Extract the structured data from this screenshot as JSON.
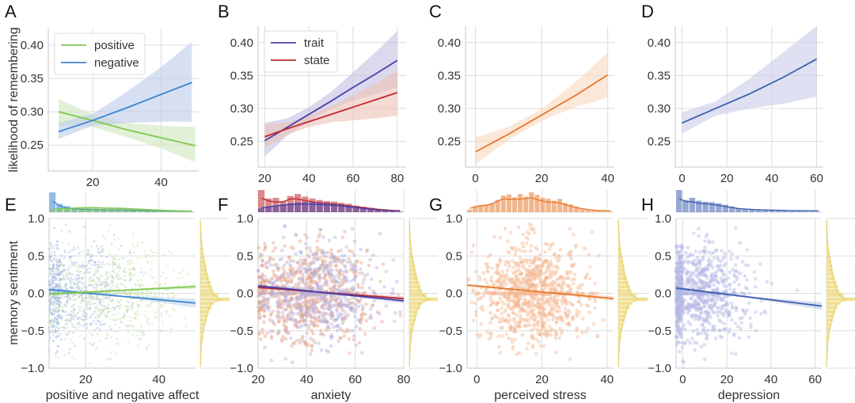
{
  "figure": {
    "top_ylabel": "likelihood of remembering",
    "bottom_ylabel": "memory sentiment",
    "marginal_color": "#e8d46a"
  },
  "chart_data": [
    {
      "panel": "A",
      "type": "line",
      "xlim": [
        7,
        51
      ],
      "ylim": [
        0.211,
        0.425
      ],
      "xticks": [
        20,
        40
      ],
      "yticks": [
        0.25,
        0.3,
        0.35,
        0.4
      ],
      "ytick_labels": [
        "0.25",
        "0.30",
        "0.35",
        "0.40"
      ],
      "xlabel": "",
      "ylabel": "likelihood of remembering",
      "grid": true,
      "legend": "top-left",
      "series": [
        {
          "name": "positive",
          "color": "#7ec850",
          "band": "#cfe6bd",
          "x": [
            10,
            20,
            30,
            40,
            50
          ],
          "y": [
            0.3,
            0.287,
            0.273,
            0.261,
            0.249
          ],
          "lo": [
            0.28,
            0.277,
            0.262,
            0.245,
            0.224
          ],
          "hi": [
            0.319,
            0.296,
            0.283,
            0.279,
            0.277
          ]
        },
        {
          "name": "negative",
          "color": "#3c86d0",
          "band": "#bccbeb",
          "x": [
            10,
            20,
            30,
            40,
            49
          ],
          "y": [
            0.27,
            0.287,
            0.306,
            0.326,
            0.344
          ],
          "lo": [
            0.259,
            0.279,
            0.283,
            0.285,
            0.285
          ],
          "hi": [
            0.283,
            0.297,
            0.33,
            0.367,
            0.405
          ]
        }
      ]
    },
    {
      "panel": "B",
      "type": "line",
      "xlim": [
        17,
        84
      ],
      "ylim": [
        0.211,
        0.425
      ],
      "xticks": [
        20,
        40,
        60,
        80
      ],
      "yticks": [
        0.25,
        0.3,
        0.35,
        0.4
      ],
      "ytick_labels": [
        "0.25",
        "0.30",
        "0.35",
        "0.40"
      ],
      "xlabel": "",
      "grid": true,
      "legend": "top-left",
      "series": [
        {
          "name": "trait",
          "color": "#4a3fa8",
          "band": "#c3c0e3",
          "x": [
            20,
            30,
            40,
            50,
            60,
            70,
            80
          ],
          "y": [
            0.251,
            0.271,
            0.291,
            0.311,
            0.332,
            0.352,
            0.373
          ],
          "lo": [
            0.227,
            0.258,
            0.281,
            0.299,
            0.312,
            0.322,
            0.332
          ],
          "hi": [
            0.278,
            0.285,
            0.302,
            0.325,
            0.355,
            0.385,
            0.417
          ]
        },
        {
          "name": "state",
          "color": "#c0282d",
          "band": "#ecc1b4",
          "x": [
            20,
            30,
            40,
            50,
            60,
            70,
            80
          ],
          "y": [
            0.257,
            0.269,
            0.28,
            0.291,
            0.302,
            0.313,
            0.324
          ],
          "lo": [
            0.24,
            0.26,
            0.272,
            0.279,
            0.282,
            0.285,
            0.289
          ],
          "hi": [
            0.275,
            0.279,
            0.289,
            0.303,
            0.32,
            0.338,
            0.356
          ]
        }
      ]
    },
    {
      "panel": "C",
      "type": "line",
      "xlim": [
        -3,
        42
      ],
      "ylim": [
        0.211,
        0.425
      ],
      "xticks": [
        0,
        20,
        40
      ],
      "yticks": [
        0.25,
        0.3,
        0.35,
        0.4
      ],
      "ytick_labels": [
        "0.25",
        "0.30",
        "0.35",
        "0.40"
      ],
      "xlabel": "",
      "grid": true,
      "series": [
        {
          "name": "perceived stress",
          "color": "#e87a2e",
          "band": "#f8d9c0",
          "x": [
            0,
            10,
            20,
            30,
            40
          ],
          "y": [
            0.234,
            0.261,
            0.29,
            0.319,
            0.351
          ],
          "lo": [
            0.215,
            0.252,
            0.281,
            0.302,
            0.316
          ],
          "hi": [
            0.256,
            0.272,
            0.299,
            0.339,
            0.385
          ]
        }
      ]
    },
    {
      "panel": "D",
      "type": "line",
      "xlim": [
        -3,
        63
      ],
      "ylim": [
        0.211,
        0.425
      ],
      "xticks": [
        0,
        20,
        40,
        60
      ],
      "yticks": [
        0.25,
        0.3,
        0.35,
        0.4
      ],
      "ytick_labels": [
        "0.25",
        "0.30",
        "0.35",
        "0.40"
      ],
      "xlabel": "",
      "grid": true,
      "series": [
        {
          "name": "depression",
          "color": "#3f5eb0",
          "band": "#c9cdea",
          "x": [
            0,
            15,
            30,
            45,
            60
          ],
          "y": [
            0.278,
            0.3,
            0.322,
            0.347,
            0.375
          ],
          "lo": [
            0.262,
            0.289,
            0.3,
            0.307,
            0.318
          ],
          "hi": [
            0.294,
            0.311,
            0.345,
            0.385,
            0.425
          ]
        }
      ]
    },
    {
      "panel": "E",
      "type": "scatter",
      "xlim": [
        10,
        50
      ],
      "ylim": [
        -1.0,
        1.0
      ],
      "xticks": [
        20,
        40
      ],
      "yticks": [
        -1.0,
        -0.5,
        0.0,
        0.5,
        1.0
      ],
      "ytick_labels": [
        "−1.0",
        "−0.5",
        "0.0",
        "0.5",
        "1.0"
      ],
      "xlabel": "positive and negative affect",
      "ylabel": "memory sentiment",
      "grid": true,
      "series": [
        {
          "name": "negative",
          "color": "#3c86d0",
          "point_color": "#9fb6e3",
          "fit_x": [
            10,
            50
          ],
          "fit_y": [
            0.05,
            -0.13
          ],
          "band_lo_end": -0.19,
          "band_hi_end": -0.07,
          "center_x": 14,
          "spread_x": 9,
          "n_points": 700,
          "hist_values": [
            1.0,
            0.42,
            0.3,
            0.18,
            0.15,
            0.13,
            0.12,
            0.11,
            0.1,
            0.1,
            0.09,
            0.08,
            0.07,
            0.06,
            0.05,
            0.04,
            0.03,
            0.02,
            0.02,
            0.01
          ]
        },
        {
          "name": "positive",
          "color": "#7ec850",
          "point_color": "#c7e3ae",
          "fit_x": [
            10,
            50
          ],
          "fit_y": [
            -0.01,
            0.09
          ],
          "band_lo_end": 0.06,
          "band_hi_end": 0.12,
          "center_x": 27,
          "spread_x": 10,
          "n_points": 700,
          "hist_values": [
            0.12,
            0.16,
            0.19,
            0.22,
            0.24,
            0.26,
            0.25,
            0.24,
            0.23,
            0.22,
            0.21,
            0.18,
            0.16,
            0.14,
            0.1,
            0.08,
            0.06,
            0.04,
            0.03,
            0.02
          ]
        }
      ]
    },
    {
      "panel": "F",
      "type": "scatter",
      "xlim": [
        20,
        80
      ],
      "ylim": [
        -1.0,
        1.0
      ],
      "xticks": [
        20,
        40,
        60,
        80
      ],
      "yticks": [
        -1.0,
        -0.5,
        0.0,
        0.5,
        1.0
      ],
      "ytick_labels": [
        "−1.0",
        "−0.5",
        "0.0",
        "0.5",
        "1.0"
      ],
      "xlabel": "anxiety",
      "grid": true,
      "series": [
        {
          "name": "state",
          "color": "#c0282d",
          "point_color": "#e3a58f",
          "fit_x": [
            20,
            80
          ],
          "fit_y": [
            0.08,
            -0.07
          ],
          "band_lo_end": -0.1,
          "band_hi_end": -0.04,
          "center_x": 40,
          "spread_x": 13,
          "n_points": 800,
          "hist_values": [
            1.0,
            0.62,
            0.65,
            0.48,
            0.73,
            0.82,
            0.7,
            0.62,
            0.55,
            0.5,
            0.48,
            0.42,
            0.38,
            0.3,
            0.25,
            0.2,
            0.14,
            0.1,
            0.06,
            0.03
          ]
        },
        {
          "name": "trait",
          "color": "#4a3fa8",
          "point_color": "#b4b1e0",
          "fit_x": [
            20,
            80
          ],
          "fit_y": [
            0.1,
            -0.1
          ],
          "band_lo_end": -0.13,
          "band_hi_end": -0.07,
          "center_x": 45,
          "spread_x": 12,
          "n_points": 500,
          "hist_values": [
            0.18,
            0.25,
            0.3,
            0.36,
            0.4,
            0.44,
            0.46,
            0.45,
            0.43,
            0.4,
            0.38,
            0.34,
            0.3,
            0.25,
            0.2,
            0.15,
            0.1,
            0.06,
            0.03,
            0.01
          ]
        }
      ]
    },
    {
      "panel": "G",
      "type": "scatter",
      "xlim": [
        -3,
        42
      ],
      "ylim": [
        -1.0,
        1.0
      ],
      "xticks": [
        0,
        20,
        40
      ],
      "yticks": [
        -1.0,
        -0.5,
        0.0,
        0.5,
        1.0
      ],
      "ytick_labels": [
        "−1.0",
        "−0.5",
        "0.0",
        "0.5",
        "1.0"
      ],
      "xlabel": "perceived stress",
      "grid": true,
      "series": [
        {
          "name": "perceived stress",
          "color": "#e87a2e",
          "point_color": "#f4b892",
          "fit_x": [
            -3,
            42
          ],
          "fit_y": [
            0.11,
            -0.07
          ],
          "band_lo_end": -0.1,
          "band_hi_end": -0.04,
          "center_x": 17,
          "spread_x": 8,
          "n_points": 1000,
          "hist_values": [
            0.12,
            0.25,
            0.33,
            0.35,
            0.4,
            0.55,
            0.75,
            0.8,
            0.68,
            0.82,
            0.7,
            0.9,
            0.78,
            0.65,
            0.6,
            0.52,
            0.6,
            0.42,
            0.36,
            0.25,
            0.18,
            0.12,
            0.08,
            0.05,
            0.03,
            0.02
          ]
        }
      ]
    },
    {
      "panel": "H",
      "type": "scatter",
      "xlim": [
        -3,
        63
      ],
      "ylim": [
        -1.0,
        1.0
      ],
      "xticks": [
        0,
        20,
        40,
        60
      ],
      "yticks": [
        -1.0,
        -0.5,
        0.0,
        0.5,
        1.0
      ],
      "ytick_labels": [
        "−1.0",
        "−0.5",
        "0.0",
        "0.5",
        "1.0"
      ],
      "xlabel": "depression",
      "grid": true,
      "series": [
        {
          "name": "depression",
          "color": "#3f5eb0",
          "point_color": "#b3b9e4",
          "fit_x": [
            -3,
            63
          ],
          "fit_y": [
            0.07,
            -0.17
          ],
          "band_lo_end": -0.22,
          "band_hi_end": -0.12,
          "center_x": 6,
          "spread_x": 12,
          "n_points": 900,
          "hist_values": [
            1.0,
            0.55,
            0.65,
            0.52,
            0.47,
            0.45,
            0.4,
            0.33,
            0.26,
            0.18,
            0.15,
            0.12,
            0.1,
            0.08,
            0.07,
            0.06,
            0.05,
            0.04,
            0.03,
            0.03,
            0.02,
            0.02
          ]
        }
      ]
    }
  ],
  "sentiment_marginal": {
    "color": "#e8d46a",
    "bins": [
      -1.0,
      1.0
    ],
    "hist_values": [
      0.01,
      0.01,
      0.02,
      0.03,
      0.04,
      0.05,
      0.07,
      0.09,
      0.11,
      0.14,
      0.17,
      0.2,
      0.22,
      0.26,
      0.3,
      0.35,
      0.4,
      0.45,
      0.6,
      1.0,
      0.45,
      0.38,
      0.3,
      0.26,
      0.22,
      0.18,
      0.14,
      0.11,
      0.09,
      0.07,
      0.05,
      0.04,
      0.03,
      0.02,
      0.01,
      0.01
    ]
  }
}
